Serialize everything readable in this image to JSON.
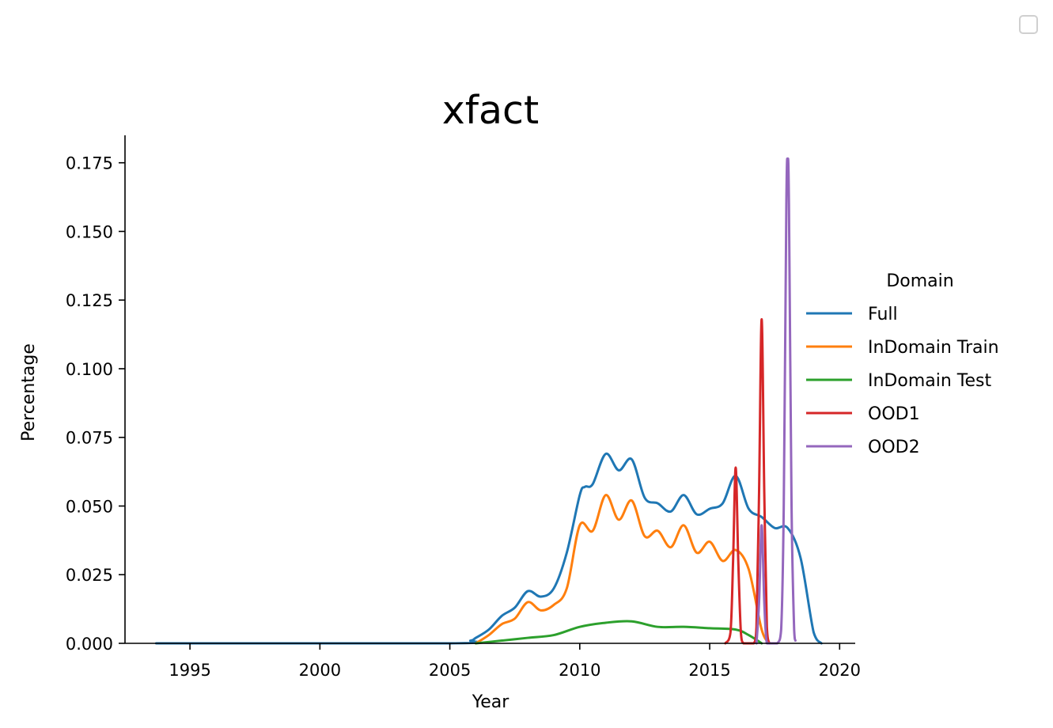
{
  "chart_data": {
    "type": "line",
    "title": "xfact",
    "xlabel": "Year",
    "ylabel": "Percentage",
    "xlim": [
      1992.5,
      2020.6
    ],
    "ylim": [
      0,
      0.185
    ],
    "xticks": [
      1995,
      2000,
      2005,
      2010,
      2015,
      2020
    ],
    "yticks": [
      0.0,
      0.025,
      0.05,
      0.075,
      0.1,
      0.125,
      0.15,
      0.175
    ],
    "ytick_labels": [
      "0.000",
      "0.025",
      "0.050",
      "0.075",
      "0.100",
      "0.125",
      "0.150",
      "0.175"
    ],
    "grid": false,
    "legend": {
      "title": "Domain",
      "placement": "right"
    },
    "series": [
      {
        "name": "Full",
        "color": "#1f77b4",
        "x": [
          1993.7,
          2005.0,
          2005.8,
          2006.0,
          2006.5,
          2007.0,
          2007.5,
          2008.0,
          2008.5,
          2009.0,
          2009.5,
          2010.0,
          2010.2,
          2010.5,
          2011.0,
          2011.5,
          2012.0,
          2012.5,
          2013.0,
          2013.5,
          2014.0,
          2014.5,
          2015.0,
          2015.5,
          2016.0,
          2016.5,
          2017.0,
          2017.5,
          2018.0,
          2018.5,
          2019.0,
          2019.3
        ],
        "y": [
          0.0,
          0.0,
          0.001,
          0.002,
          0.005,
          0.01,
          0.013,
          0.019,
          0.017,
          0.02,
          0.033,
          0.054,
          0.057,
          0.058,
          0.069,
          0.063,
          0.067,
          0.053,
          0.051,
          0.048,
          0.054,
          0.047,
          0.049,
          0.051,
          0.061,
          0.049,
          0.046,
          0.042,
          0.042,
          0.031,
          0.004,
          0.0
        ]
      },
      {
        "name": "InDomain Train",
        "color": "#ff7f0e",
        "x": [
          2006.0,
          2006.5,
          2007.0,
          2007.5,
          2008.0,
          2008.5,
          2009.0,
          2009.5,
          2010.0,
          2010.5,
          2011.0,
          2011.5,
          2012.0,
          2012.5,
          2013.0,
          2013.5,
          2014.0,
          2014.5,
          2015.0,
          2015.5,
          2016.0,
          2016.5,
          2017.0,
          2017.3
        ],
        "y": [
          0.0,
          0.003,
          0.007,
          0.009,
          0.015,
          0.012,
          0.014,
          0.02,
          0.043,
          0.041,
          0.054,
          0.045,
          0.052,
          0.039,
          0.041,
          0.035,
          0.043,
          0.033,
          0.037,
          0.03,
          0.034,
          0.027,
          0.005,
          0.0
        ]
      },
      {
        "name": "InDomain Test",
        "color": "#2ca02c",
        "x": [
          2006.0,
          2007.0,
          2008.0,
          2009.0,
          2010.0,
          2011.0,
          2012.0,
          2013.0,
          2014.0,
          2015.0,
          2016.0,
          2016.5,
          2017.0
        ],
        "y": [
          0.0,
          0.001,
          0.002,
          0.003,
          0.006,
          0.0075,
          0.008,
          0.006,
          0.006,
          0.0055,
          0.005,
          0.003,
          0.0
        ]
      },
      {
        "name": "OOD1",
        "color": "#d62728",
        "x": [
          2015.6,
          2015.8,
          2015.9,
          2016.0,
          2016.1,
          2016.2,
          2016.3,
          2016.5,
          2016.7,
          2016.8,
          2016.9,
          2017.0,
          2017.1,
          2017.2,
          2017.3,
          2017.4
        ],
        "y": [
          0.0,
          0.004,
          0.03,
          0.064,
          0.03,
          0.004,
          0.0,
          0.0,
          0.0,
          0.006,
          0.055,
          0.118,
          0.055,
          0.006,
          0.0,
          0.0
        ]
      },
      {
        "name": "OOD2",
        "color": "#9467bd",
        "x": [
          2016.8,
          2016.9,
          2017.0,
          2017.1,
          2017.2,
          2017.4,
          2017.6,
          2017.75,
          2017.85,
          2017.95,
          2018.0,
          2018.05,
          2018.15,
          2018.25,
          2018.3
        ],
        "y": [
          0.0,
          0.015,
          0.043,
          0.015,
          0.0,
          0.0,
          0.0,
          0.005,
          0.05,
          0.16,
          0.176,
          0.16,
          0.05,
          0.005,
          0.001
        ]
      }
    ]
  }
}
